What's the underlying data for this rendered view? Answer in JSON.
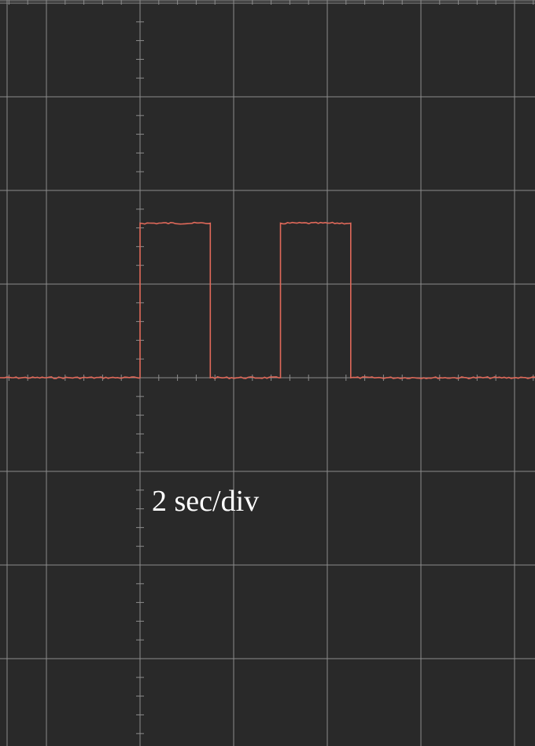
{
  "chart_data": {
    "type": "line",
    "title": "",
    "xlabel": "",
    "ylabel": "",
    "annotation": "2 sec/div",
    "x_units": "sec",
    "x_per_division": 2,
    "grid": true,
    "legend": "none",
    "colors": {
      "background": "#292929",
      "grid": "#8c8c8c",
      "trace": "#e0695a",
      "text": "#ffffff"
    },
    "series": [
      {
        "x": [
          -3,
          0,
          0,
          1.5,
          1.5,
          3,
          3,
          4.5,
          4.5,
          17
        ],
        "y": [
          0,
          0,
          1.65,
          1.65,
          0,
          0,
          1.65,
          1.65,
          0,
          0
        ]
      }
    ]
  }
}
